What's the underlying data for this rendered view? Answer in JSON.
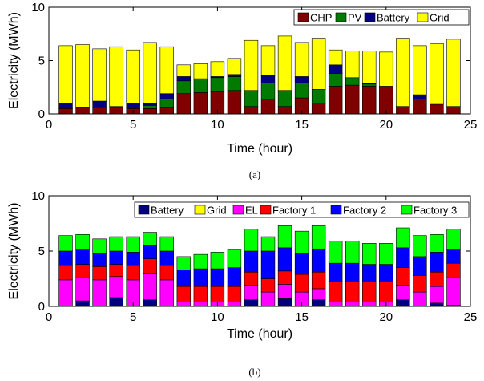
{
  "chart_data": [
    {
      "type": "bar",
      "stacked": true,
      "caption": "(a)",
      "xlabel": "Time (hour)",
      "ylabel": "Electricity (MWh)",
      "xlim": [
        0,
        25
      ],
      "ylim": [
        0,
        10
      ],
      "xticks": [
        0,
        5,
        10,
        15,
        20,
        25
      ],
      "yticks": [
        0,
        5,
        10
      ],
      "legend_position": "top-right",
      "x": [
        1,
        2,
        3,
        4,
        5,
        6,
        7,
        8,
        9,
        10,
        11,
        12,
        13,
        14,
        15,
        16,
        17,
        18,
        19,
        20,
        21,
        22,
        23,
        24
      ],
      "series": [
        {
          "name": "CHP",
          "color": "#800000",
          "values": [
            0.5,
            0.6,
            0.6,
            0.6,
            0.5,
            0.5,
            0.6,
            1.9,
            2.0,
            2.1,
            2.2,
            0.7,
            1.4,
            0.7,
            1.5,
            1.0,
            2.6,
            2.7,
            2.6,
            2.6,
            0.7,
            1.4,
            0.9,
            0.7
          ]
        },
        {
          "name": "PV",
          "color": "#007a00",
          "values": [
            0,
            0,
            0,
            0,
            0,
            0.3,
            0.8,
            1.2,
            1.3,
            1.3,
            1.3,
            1.5,
            1.5,
            1.5,
            1.4,
            1.3,
            1.2,
            0.7,
            0.2,
            0,
            0,
            0,
            0,
            0
          ]
        },
        {
          "name": "Battery",
          "color": "#000080",
          "values": [
            0.5,
            0,
            0.6,
            0.1,
            0.5,
            0.2,
            0.5,
            0.4,
            0,
            0.1,
            0.2,
            0,
            0.7,
            0,
            0.6,
            0,
            0.8,
            0,
            0.1,
            0,
            0,
            0.4,
            0,
            0
          ]
        },
        {
          "name": "Grid",
          "color": "#ffff00",
          "values": [
            5.4,
            5.9,
            4.9,
            5.6,
            5.0,
            5.7,
            4.4,
            1.1,
            1.4,
            1.4,
            1.5,
            4.7,
            2.8,
            5.1,
            3.2,
            4.8,
            1.4,
            2.5,
            3.0,
            3.2,
            6.4,
            4.6,
            5.7,
            6.3
          ]
        }
      ]
    },
    {
      "type": "bar",
      "stacked": true,
      "caption": "(b)",
      "xlabel": "Time (hour)",
      "ylabel": "Electricity (MWh)",
      "xlim": [
        0,
        25
      ],
      "ylim": [
        0,
        10
      ],
      "xticks": [
        0,
        5,
        10,
        15,
        20,
        25
      ],
      "yticks": [
        0,
        5,
        10
      ],
      "legend_position": "top",
      "x": [
        1,
        2,
        3,
        4,
        5,
        6,
        7,
        8,
        9,
        10,
        11,
        12,
        13,
        14,
        15,
        16,
        17,
        18,
        19,
        20,
        21,
        22,
        23,
        24
      ],
      "series": [
        {
          "name": "Battery",
          "color": "#000080",
          "values": [
            0,
            0.5,
            0,
            0.8,
            0,
            0.6,
            0,
            0,
            0,
            0,
            0,
            0.6,
            0,
            0.7,
            0,
            0.6,
            0,
            0,
            0,
            0,
            0.6,
            0,
            0.3,
            0.1
          ]
        },
        {
          "name": "Grid",
          "color": "#ffff00",
          "values": [
            0,
            0,
            0,
            0,
            0,
            0,
            0,
            0,
            0,
            0,
            0,
            0,
            0,
            0,
            0,
            0,
            0,
            0,
            0,
            0,
            0,
            0,
            0,
            0
          ]
        },
        {
          "name": "EL",
          "color": "#ff00ff",
          "values": [
            2.4,
            2.1,
            2.4,
            1.9,
            2.4,
            2.4,
            2.4,
            0.4,
            0.4,
            0.4,
            0.4,
            1.3,
            1.3,
            1.3,
            1.3,
            1.0,
            0.4,
            0.4,
            0.4,
            0.4,
            1.3,
            1.3,
            1.5,
            2.5
          ]
        },
        {
          "name": "Factory 1",
          "color": "#ff0000",
          "values": [
            1.3,
            1.2,
            1.2,
            1.1,
            1.3,
            1.3,
            1.3,
            1.4,
            1.4,
            1.4,
            1.4,
            1.2,
            1.2,
            1.2,
            1.6,
            1.5,
            1.9,
            1.9,
            1.9,
            1.9,
            1.6,
            1.5,
            1.3,
            1.3
          ]
        },
        {
          "name": "Factory 2",
          "color": "#0000ff",
          "values": [
            1.3,
            1.3,
            1.2,
            1.2,
            1.2,
            1.2,
            1.3,
            1.5,
            1.6,
            1.6,
            1.7,
            1.9,
            2.5,
            2.1,
            1.9,
            2.1,
            1.6,
            1.6,
            1.5,
            1.5,
            1.8,
            1.7,
            1.8,
            1.2
          ]
        },
        {
          "name": "Factory 3",
          "color": "#00ff00",
          "values": [
            1.4,
            1.4,
            1.3,
            1.3,
            1.4,
            1.2,
            1.3,
            1.2,
            1.3,
            1.5,
            1.6,
            2.0,
            1.3,
            2.0,
            2.0,
            2.1,
            2.0,
            2.0,
            1.9,
            1.9,
            1.8,
            1.9,
            1.6,
            1.9
          ]
        }
      ]
    }
  ]
}
